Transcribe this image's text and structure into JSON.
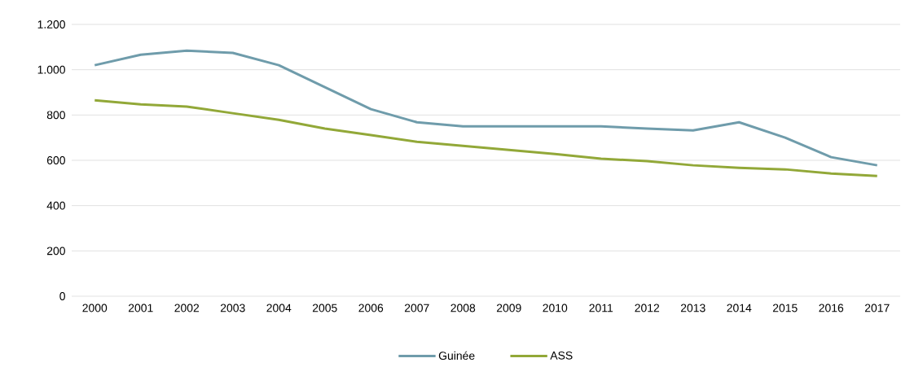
{
  "chart_data": {
    "type": "line",
    "categories": [
      "2000",
      "2001",
      "2002",
      "2003",
      "2004",
      "2005",
      "2006",
      "2007",
      "2008",
      "2009",
      "2010",
      "2011",
      "2012",
      "2013",
      "2014",
      "2015",
      "2016",
      "2017"
    ],
    "series": [
      {
        "name": "Guinée",
        "color": "#6f9cab",
        "values": [
          1020,
          1066,
          1084,
          1074,
          1020,
          923,
          826,
          768,
          750,
          750,
          750,
          750,
          740,
          732,
          768,
          700,
          614,
          578
        ]
      },
      {
        "name": "ASS",
        "color": "#92a838",
        "values": [
          865,
          847,
          837,
          808,
          779,
          740,
          711,
          682,
          664,
          646,
          628,
          607,
          596,
          578,
          567,
          560,
          542,
          531
        ]
      }
    ],
    "ylim": [
      0,
      1200
    ],
    "yticks": [
      0,
      200,
      400,
      600,
      800,
      {
        "value": 1000,
        "label": "1.000"
      },
      {
        "value": 1200,
        "label": "1.200"
      }
    ],
    "grid": "y",
    "legend": "bottom",
    "marker": "none",
    "line_style": "solid"
  }
}
